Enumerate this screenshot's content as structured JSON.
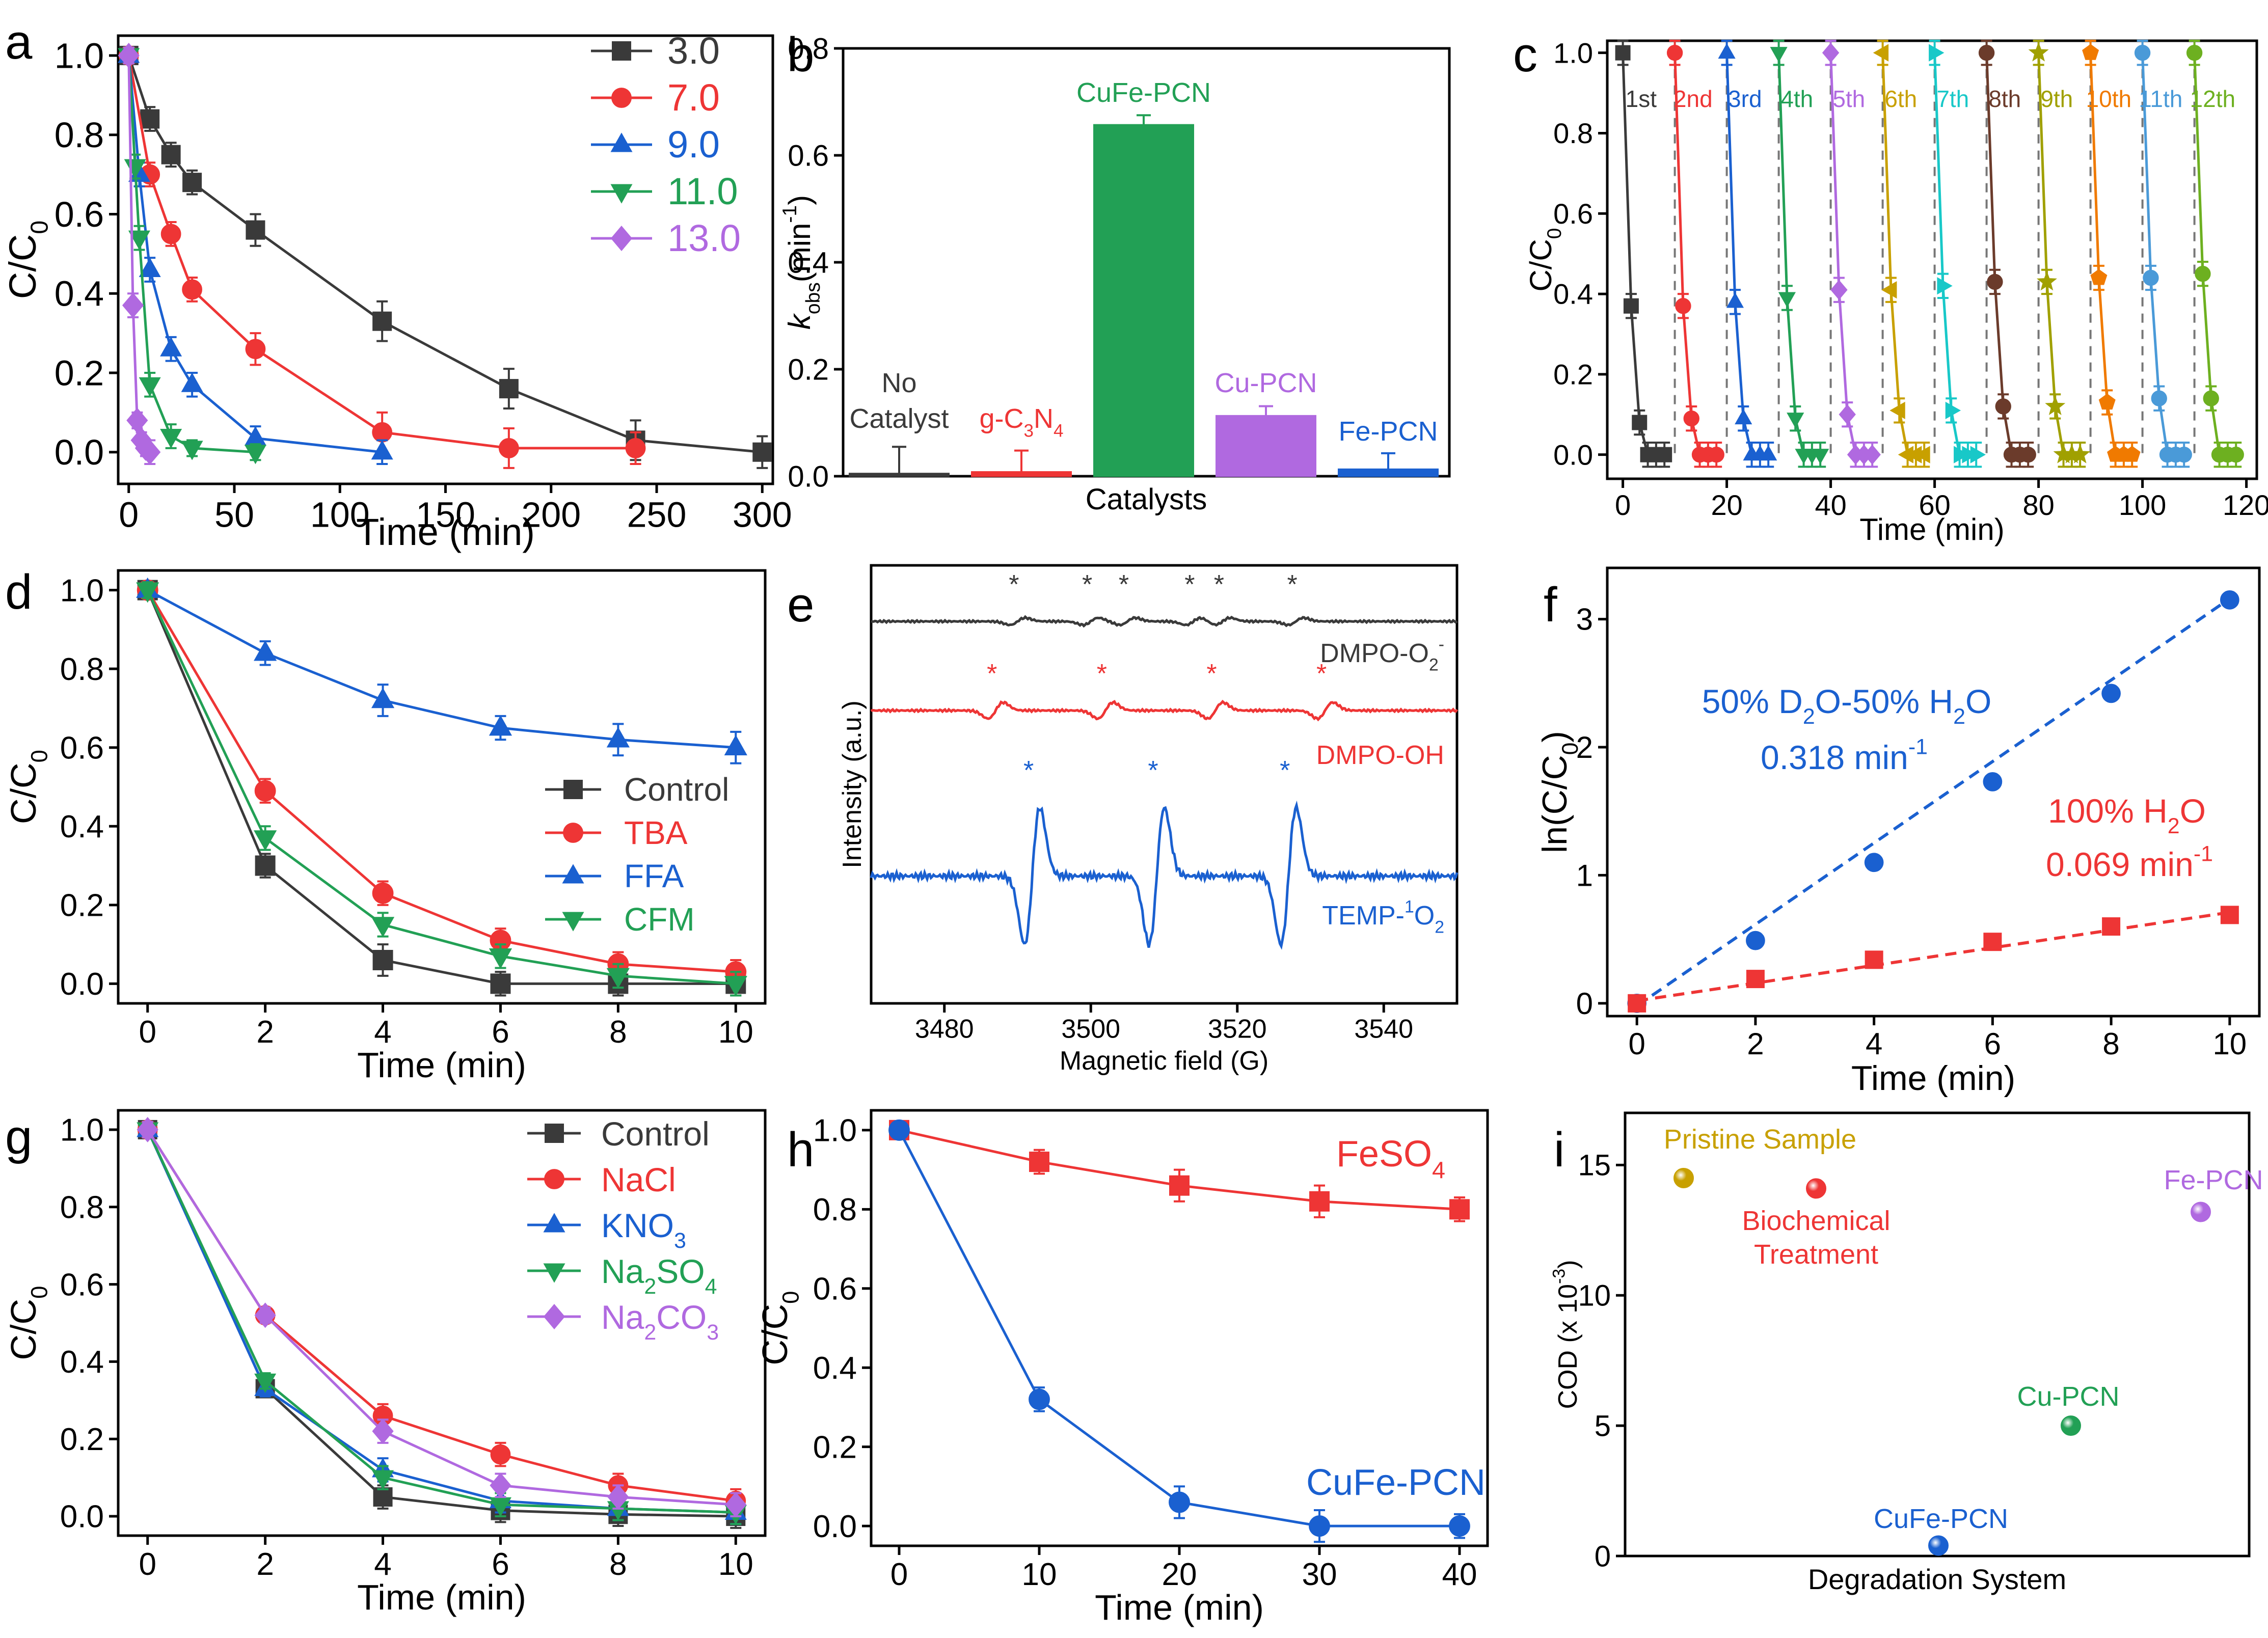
{
  "colors": {
    "black": "#3a3a3a",
    "red": "#ee3535",
    "blue": "#1a60d0",
    "green": "#22a055",
    "purple": "#b069e0",
    "gold": "#c8a000",
    "brown": "#6b3b2b",
    "olive": "#a0a000",
    "orange": "#f07a00",
    "skyblue": "#4a9ad8",
    "lime": "#6db020",
    "cyan": "#18c8c8"
  },
  "chart_data": [
    {
      "panel": "a",
      "type": "line",
      "xlabel": "Time (min)",
      "ylabel_main": "C/C",
      "ylabel_sub": "0",
      "xlim": [
        -5,
        305
      ],
      "ylim": [
        -0.08,
        1.05
      ],
      "xticks": [
        "0",
        "50",
        "100",
        "150",
        "200",
        "250",
        "300"
      ],
      "yticks": [
        "0.0",
        "0.2",
        "0.4",
        "0.6",
        "0.8",
        "1.0"
      ],
      "legend_position": "top-right",
      "series": [
        {
          "name": "3.0",
          "color": "#3a3a3a",
          "marker": "square",
          "x": [
            0,
            10,
            20,
            30,
            60,
            120,
            180,
            240,
            300
          ],
          "y": [
            1.0,
            0.84,
            0.75,
            0.68,
            0.56,
            0.33,
            0.16,
            0.03,
            0.0
          ],
          "err": [
            0.02,
            0.03,
            0.03,
            0.03,
            0.04,
            0.05,
            0.05,
            0.05,
            0.04
          ]
        },
        {
          "name": "7.0",
          "color": "#ee3535",
          "marker": "circle",
          "x": [
            0,
            10,
            20,
            30,
            60,
            120,
            180,
            240
          ],
          "y": [
            1.0,
            0.7,
            0.55,
            0.41,
            0.26,
            0.05,
            0.01,
            0.01
          ],
          "err": [
            0.02,
            0.03,
            0.03,
            0.03,
            0.04,
            0.05,
            0.05,
            0.04
          ]
        },
        {
          "name": "9.0",
          "color": "#1a60d0",
          "marker": "triangle-up",
          "x": [
            0,
            5,
            10,
            20,
            30,
            60,
            120
          ],
          "y": [
            1.0,
            0.7,
            0.46,
            0.26,
            0.17,
            0.035,
            0.0
          ],
          "err": [
            0.02,
            0.03,
            0.03,
            0.03,
            0.03,
            0.03,
            0.03
          ]
        },
        {
          "name": "11.0",
          "color": "#22a055",
          "marker": "triangle-down",
          "x": [
            0,
            3,
            5,
            10,
            20,
            30,
            60
          ],
          "y": [
            1.0,
            0.72,
            0.54,
            0.17,
            0.04,
            0.01,
            0.0
          ],
          "err": [
            0.02,
            0.03,
            0.03,
            0.03,
            0.03,
            0.02,
            0.02
          ]
        },
        {
          "name": "13.0",
          "color": "#b069e0",
          "marker": "diamond",
          "x": [
            0,
            2,
            4,
            6,
            8,
            10
          ],
          "y": [
            1.0,
            0.37,
            0.08,
            0.03,
            0.01,
            0.0
          ],
          "err": [
            0.02,
            0.03,
            0.02,
            0.02,
            0.02,
            0.03
          ]
        }
      ]
    },
    {
      "panel": "b",
      "type": "bar",
      "xlabel": "Catalysts",
      "ylabel_main": "k",
      "ylabel_sub": "obs",
      "ylabel_unit": "(min",
      "ylabel_sup": "-1",
      "ylabel_close": ")",
      "ylim": [
        0,
        0.8
      ],
      "yticks": [
        "0.0",
        "0.2",
        "0.4",
        "0.6",
        "0.8"
      ],
      "categories": [
        "No Catalyst",
        "g-C3N4",
        "CuFe-PCN",
        "Cu-PCN",
        "Fe-PCN"
      ],
      "values": [
        0.005,
        0.008,
        0.657,
        0.113,
        0.013
      ],
      "errors": [
        0.05,
        0.04,
        0.018,
        0.018,
        0.03
      ],
      "colors": [
        "#3a3a3a",
        "#ee3535",
        "#22a055",
        "#b069e0",
        "#1a60d0"
      ],
      "labels": {
        "no_catalyst_1": "No",
        "no_catalyst_2": "Catalyst",
        "gcn_main": "g-C",
        "gcn_sub1": "3",
        "gcn_mid": "N",
        "gcn_sub2": "4",
        "cufe": "CuFe-PCN",
        "cu": "Cu-PCN",
        "fe": "Fe-PCN"
      }
    },
    {
      "panel": "c",
      "type": "line",
      "xlabel": "Time (min)",
      "ylabel_main": "C/C",
      "ylabel_sub": "0",
      "xlim": [
        -3,
        122
      ],
      "ylim": [
        -0.06,
        1.03
      ],
      "xticks": [
        "0",
        "20",
        "40",
        "60",
        "80",
        "100",
        "120"
      ],
      "yticks": [
        "0.0",
        "0.2",
        "0.4",
        "0.6",
        "0.8",
        "1.0"
      ],
      "cycle_offsets_min": [
        0,
        10,
        20,
        30,
        40,
        50,
        60,
        70,
        80,
        90,
        100,
        110
      ],
      "cycle_t": [
        0,
        2,
        4,
        6,
        8,
        10
      ],
      "cycle_labels": [
        "1st",
        "2nd",
        "3rd",
        "4th",
        "5th",
        "6th",
        "7th",
        "8th",
        "9th",
        "10th",
        "11th",
        "12th"
      ],
      "cycle_colors": [
        "#3a3a3a",
        "#ee3535",
        "#1a60d0",
        "#22a055",
        "#b069e0",
        "#c8a000",
        "#18c8c8",
        "#6b3b2b",
        "#a0a000",
        "#f07a00",
        "#4a9ad8",
        "#6db020"
      ],
      "cycle_markers": [
        "square",
        "circle",
        "triangle-up",
        "triangle-down",
        "diamond",
        "triangle-left",
        "triangle-right",
        "circle",
        "star",
        "pentagon",
        "circle",
        "circle"
      ],
      "cycle_values": [
        [
          1.0,
          0.37,
          0.08,
          0.0,
          0.0,
          0.0
        ],
        [
          1.0,
          0.37,
          0.09,
          0.0,
          0.0,
          0.0
        ],
        [
          1.0,
          0.38,
          0.09,
          0.0,
          0.0,
          0.0
        ],
        [
          1.0,
          0.39,
          0.09,
          0.0,
          0.0,
          0.0
        ],
        [
          1.0,
          0.41,
          0.1,
          0.0,
          0.0,
          0.0
        ],
        [
          1.0,
          0.41,
          0.11,
          0.0,
          0.0,
          0.0
        ],
        [
          1.0,
          0.42,
          0.11,
          0.0,
          0.0,
          0.0
        ],
        [
          1.0,
          0.43,
          0.12,
          0.0,
          0.0,
          0.0
        ],
        [
          1.0,
          0.43,
          0.12,
          0.0,
          0.0,
          0.0
        ],
        [
          1.0,
          0.44,
          0.13,
          0.0,
          0.0,
          0.0
        ],
        [
          1.0,
          0.44,
          0.14,
          0.0,
          0.0,
          0.0
        ],
        [
          1.0,
          0.45,
          0.14,
          0.0,
          0.0,
          0.0
        ]
      ]
    },
    {
      "panel": "d",
      "type": "line",
      "xlabel": "Time (min)",
      "ylabel_main": "C/C",
      "ylabel_sub": "0",
      "xlim": [
        -0.5,
        10.5
      ],
      "ylim": [
        -0.05,
        1.05
      ],
      "xticks": [
        "0",
        "2",
        "4",
        "6",
        "8",
        "10"
      ],
      "yticks": [
        "0.0",
        "0.2",
        "0.4",
        "0.6",
        "0.8",
        "1.0"
      ],
      "legend_position": "middle-right",
      "series": [
        {
          "name": "Control",
          "color": "#3a3a3a",
          "marker": "square",
          "x": [
            0,
            2,
            4,
            6,
            8,
            10
          ],
          "y": [
            1.0,
            0.3,
            0.06,
            0.0,
            0.0,
            0.0
          ],
          "err": [
            0.02,
            0.03,
            0.04,
            0.03,
            0.03,
            0.03
          ]
        },
        {
          "name": "TBA",
          "color": "#ee3535",
          "marker": "circle",
          "x": [
            0,
            2,
            4,
            6,
            8,
            10
          ],
          "y": [
            1.0,
            0.49,
            0.23,
            0.11,
            0.05,
            0.03
          ],
          "err": [
            0.02,
            0.03,
            0.03,
            0.03,
            0.03,
            0.03
          ]
        },
        {
          "name": "FFA",
          "color": "#1a60d0",
          "marker": "triangle-up",
          "x": [
            0,
            2,
            4,
            6,
            8,
            10
          ],
          "y": [
            1.0,
            0.84,
            0.72,
            0.65,
            0.62,
            0.6
          ],
          "err": [
            0.02,
            0.03,
            0.04,
            0.03,
            0.04,
            0.04
          ]
        },
        {
          "name": "CFM",
          "color": "#22a055",
          "marker": "triangle-down",
          "x": [
            0,
            2,
            4,
            6,
            8,
            10
          ],
          "y": [
            1.0,
            0.37,
            0.15,
            0.07,
            0.02,
            0.0
          ],
          "err": [
            0.02,
            0.03,
            0.03,
            0.03,
            0.03,
            0.03
          ]
        }
      ]
    },
    {
      "panel": "e",
      "type": "line",
      "xlabel": "Magnetic field (G)",
      "ylabel": "Intensity (a.u.)",
      "xlim": [
        3470,
        3550
      ],
      "xticks": [
        "3480",
        "3500",
        "3520",
        "3540"
      ],
      "traces": [
        {
          "name": "DMPO-O2-",
          "label_main": "DMPO-O",
          "label_sub": "2",
          "label_sup": "-",
          "color": "#3a3a3a",
          "peaks": [
            3490,
            3500,
            3505,
            3514,
            3518,
            3528
          ],
          "amp": 0.5
        },
        {
          "name": "DMPO-OH",
          "label_main": "DMPO-OH",
          "color": "#ee3535",
          "peaks": [
            3487,
            3502,
            3517,
            3532
          ],
          "amp": 1.0
        },
        {
          "name": "TEMP-1O2",
          "label_main": "TEMP-",
          "label_sup": "1",
          "label_rest": "O",
          "label_sub": "2",
          "color": "#1a60d0",
          "peaks": [
            3492,
            3509,
            3527
          ],
          "amp": 2.7
        }
      ],
      "peak_marker": "*"
    },
    {
      "panel": "f",
      "type": "scatter",
      "xlabel": "Time (min)",
      "ylabel": "ln(C/C",
      "ylabel_sub": "0",
      "ylabel_close": ")",
      "xlim": [
        -0.5,
        10.5
      ],
      "ylim": [
        -0.1,
        3.4
      ],
      "xticks": [
        "0",
        "2",
        "4",
        "6",
        "8",
        "10"
      ],
      "yticks": [
        "0",
        "1",
        "2",
        "3"
      ],
      "series": [
        {
          "name": "50% D2O-50% H2O",
          "color": "#1a60d0",
          "marker": "circle",
          "x": [
            0,
            2,
            4,
            6,
            8,
            10
          ],
          "y": [
            0.0,
            0.49,
            1.1,
            1.73,
            2.42,
            3.15
          ],
          "fit_slope": 0.318,
          "fit_intercept": -0.02
        },
        {
          "name": "100% H2O",
          "color": "#ee3535",
          "marker": "square",
          "x": [
            0,
            2,
            4,
            6,
            8,
            10
          ],
          "y": [
            0.0,
            0.19,
            0.34,
            0.48,
            0.6,
            0.69
          ],
          "fit_slope": 0.069,
          "fit_intercept": 0.02
        }
      ],
      "annotations": {
        "d2o_a": "50% D",
        "d2o_sub1": "2",
        "d2o_b": "O-50% H",
        "d2o_sub2": "2",
        "d2o_c": "O",
        "d2o_rate": "0.318 min",
        "d2o_rate_sup": "-1",
        "h2o_a": "100% H",
        "h2o_sub": "2",
        "h2o_b": "O",
        "h2o_rate": "0.069 min",
        "h2o_rate_sup": "-1"
      }
    },
    {
      "panel": "g",
      "type": "line",
      "xlabel": "Time (min)",
      "ylabel_main": "C/C",
      "ylabel_sub": "0",
      "xlim": [
        -0.5,
        10.5
      ],
      "ylim": [
        -0.05,
        1.05
      ],
      "xticks": [
        "0",
        "2",
        "4",
        "6",
        "8",
        "10"
      ],
      "yticks": [
        "0.0",
        "0.2",
        "0.4",
        "0.6",
        "0.8",
        "1.0"
      ],
      "legend_position": "top-right",
      "series": [
        {
          "name": "Control",
          "color": "#3a3a3a",
          "marker": "square",
          "x": [
            0,
            2,
            4,
            6,
            8,
            10
          ],
          "y": [
            1.0,
            0.33,
            0.05,
            0.015,
            0.005,
            0.0
          ],
          "err": [
            0.02,
            0.02,
            0.03,
            0.03,
            0.03,
            0.03
          ],
          "parts": [
            "Control"
          ]
        },
        {
          "name": "NaCl",
          "color": "#ee3535",
          "marker": "circle",
          "x": [
            0,
            2,
            4,
            6,
            8,
            10
          ],
          "y": [
            1.0,
            0.52,
            0.26,
            0.16,
            0.08,
            0.04
          ],
          "err": [
            0.02,
            0.02,
            0.03,
            0.03,
            0.03,
            0.03
          ],
          "parts": [
            "NaCl"
          ]
        },
        {
          "name": "KNO3",
          "color": "#1a60d0",
          "marker": "triangle-up",
          "x": [
            0,
            2,
            4,
            6,
            8,
            10
          ],
          "y": [
            1.0,
            0.33,
            0.12,
            0.04,
            0.02,
            0.01
          ],
          "err": [
            0.02,
            0.02,
            0.03,
            0.03,
            0.03,
            0.03
          ],
          "parts": [
            "KNO",
            "3"
          ]
        },
        {
          "name": "Na2SO4",
          "color": "#22a055",
          "marker": "triangle-down",
          "x": [
            0,
            2,
            4,
            6,
            8,
            10
          ],
          "y": [
            1.0,
            0.35,
            0.1,
            0.03,
            0.02,
            0.01
          ],
          "err": [
            0.02,
            0.02,
            0.03,
            0.03,
            0.03,
            0.03
          ],
          "parts": [
            "Na",
            "2",
            "SO",
            "4"
          ]
        },
        {
          "name": "Na2CO3",
          "color": "#b069e0",
          "marker": "diamond",
          "x": [
            0,
            2,
            4,
            6,
            8,
            10
          ],
          "y": [
            1.0,
            0.52,
            0.22,
            0.08,
            0.05,
            0.03
          ],
          "err": [
            0.02,
            0.02,
            0.03,
            0.03,
            0.03,
            0.03
          ],
          "parts": [
            "Na",
            "2",
            "CO",
            "3"
          ]
        }
      ]
    },
    {
      "panel": "h",
      "type": "line",
      "xlabel": "Time (min)",
      "ylabel_main": "C/C",
      "ylabel_sub": "0",
      "xlim": [
        -2,
        42
      ],
      "ylim": [
        -0.05,
        1.05
      ],
      "xticks": [
        "0",
        "10",
        "20",
        "30",
        "40"
      ],
      "yticks": [
        "0.0",
        "0.2",
        "0.4",
        "0.6",
        "0.8",
        "1.0"
      ],
      "series": [
        {
          "name": "FeSO4",
          "color": "#ee3535",
          "marker": "square",
          "x": [
            0,
            10,
            20,
            30,
            40
          ],
          "y": [
            1.0,
            0.92,
            0.86,
            0.82,
            0.8
          ],
          "err": [
            0.02,
            0.03,
            0.04,
            0.04,
            0.03
          ]
        },
        {
          "name": "CuFe-PCN",
          "color": "#1a60d0",
          "marker": "circle",
          "x": [
            0,
            10,
            20,
            30,
            40
          ],
          "y": [
            1.0,
            0.32,
            0.06,
            0.0,
            0.0
          ],
          "err": [
            0.02,
            0.03,
            0.04,
            0.04,
            0.03
          ]
        }
      ],
      "labels": {
        "feso4_a": "FeSO",
        "feso4_sub": "4",
        "cufe": "CuFe-PCN"
      }
    },
    {
      "panel": "i",
      "type": "scatter",
      "xlabel": "Degradation System",
      "ylabel": "COD (x 10",
      "ylabel_sup": "-3",
      "ylabel_close": ")",
      "ylim": [
        0,
        17
      ],
      "yticks": [
        "0",
        "5",
        "10",
        "15"
      ],
      "points": [
        {
          "name": "Pristine Sample",
          "lines": [
            "Pristine Sample"
          ],
          "value": 14.5,
          "color": "#c8a000"
        },
        {
          "name": "Biochemical Treatment",
          "lines": [
            "Biochemical",
            "Treatment"
          ],
          "value": 14.1,
          "color": "#ee3535"
        },
        {
          "name": "Fe-PCN",
          "lines": [
            "Fe-PCN"
          ],
          "value": 13.2,
          "color": "#b069e0"
        },
        {
          "name": "Cu-PCN",
          "lines": [
            "Cu-PCN"
          ],
          "value": 5.0,
          "color": "#22a055"
        },
        {
          "name": "CuFe-PCN",
          "lines": [
            "CuFe-PCN"
          ],
          "value": 0.4,
          "color": "#1a60d0"
        }
      ]
    }
  ],
  "panel_letters": [
    "a",
    "b",
    "c",
    "d",
    "e",
    "f",
    "g",
    "h",
    "i"
  ]
}
